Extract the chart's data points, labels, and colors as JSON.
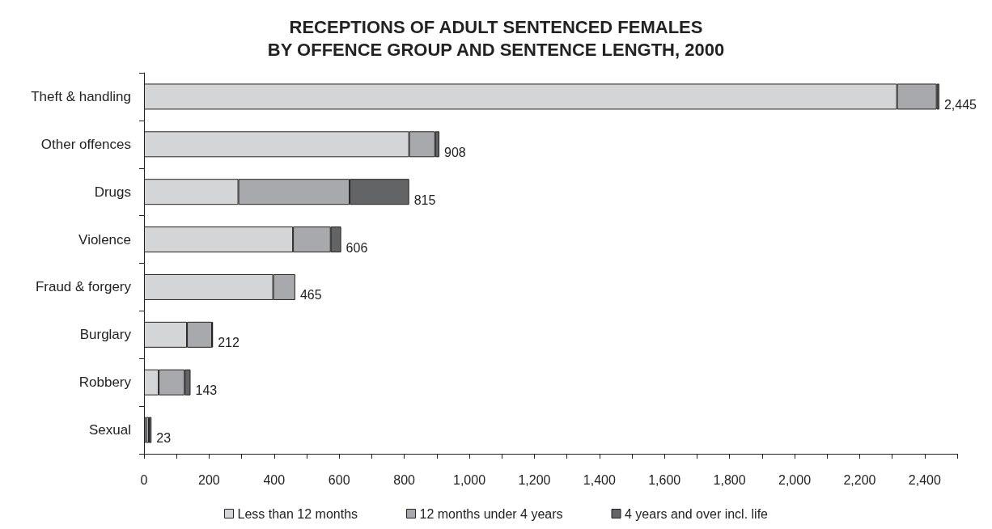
{
  "chart_data": {
    "type": "bar",
    "orientation": "horizontal",
    "stacked": true,
    "title": "RECEPTIONS OF ADULT SENTENCED FEMALES\nBY OFFENCE GROUP AND SENTENCE LENGTH, 2000",
    "categories": [
      "Theft & handling",
      "Other offences",
      "Drugs",
      "Violence",
      "Fraud & forgery",
      "Burglary",
      "Robbery",
      "Sexual"
    ],
    "series": [
      {
        "name": "Less than 12 months",
        "color": "#d4d5d7",
        "values": [
          2315,
          815,
          290,
          458,
          397,
          132,
          45,
          6
        ]
      },
      {
        "name": "12 months under 4 years",
        "color": "#a8a9ac",
        "values": [
          122,
          80,
          342,
          116,
          68,
          77,
          80,
          9
        ]
      },
      {
        "name": "4 years and over incl. life",
        "color": "#636466",
        "values": [
          8,
          13,
          183,
          32,
          0,
          3,
          18,
          8
        ]
      }
    ],
    "totals": [
      "2,445",
      "908",
      "815",
      "606",
      "465",
      "212",
      "143",
      "23"
    ],
    "xlim": [
      0,
      2500
    ],
    "xticks": [
      0,
      {
        "value": 100,
        "label": null
      },
      200,
      {
        "value": 300,
        "label": null
      },
      400,
      {
        "value": 500,
        "label": null
      },
      600,
      {
        "value": 700,
        "label": null
      },
      800,
      {
        "value": 900,
        "label": null
      },
      {
        "value": 1000,
        "label": "1,000"
      },
      {
        "value": 1100,
        "label": null
      },
      {
        "value": 1200,
        "label": "1,200"
      },
      {
        "value": 1300,
        "label": null
      },
      {
        "value": 1400,
        "label": "1,400"
      },
      {
        "value": 1500,
        "label": null
      },
      {
        "value": 1600,
        "label": "1,600"
      },
      {
        "value": 1700,
        "label": null
      },
      {
        "value": 1800,
        "label": "1,800"
      },
      {
        "value": 1900,
        "label": null
      },
      {
        "value": 2000,
        "label": "2,000"
      },
      {
        "value": 2100,
        "label": null
      },
      {
        "value": 2200,
        "label": "2,200"
      },
      {
        "value": 2300,
        "label": null
      },
      {
        "value": 2400,
        "label": "2,400"
      },
      {
        "value": 2500,
        "label": null
      }
    ],
    "grid": false,
    "legend": "bottom"
  }
}
